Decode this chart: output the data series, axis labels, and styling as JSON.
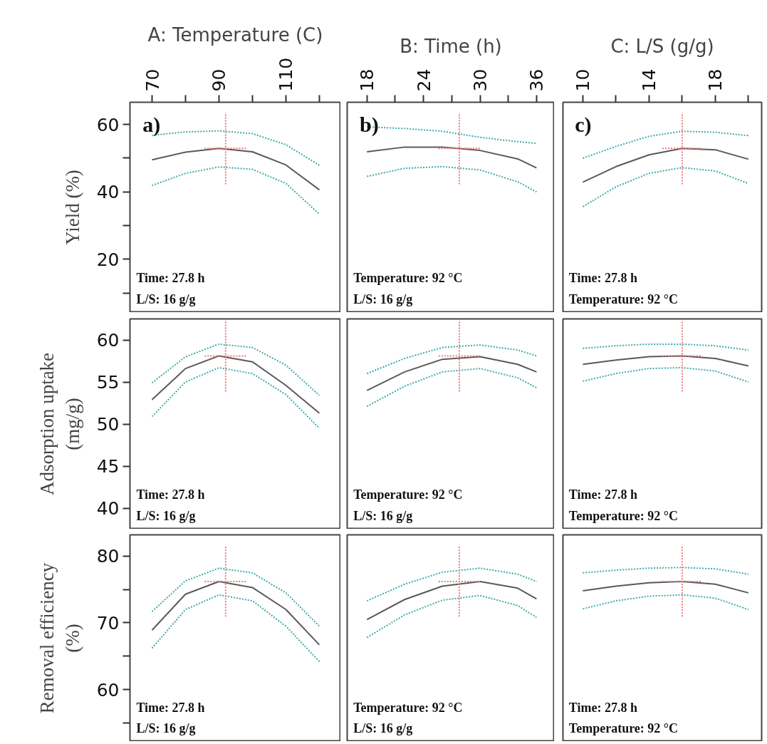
{
  "chart_data": [
    {
      "type": "line",
      "xlabel": "A: Temperature (C)",
      "ylabel": "Yield (%)",
      "x": [
        70,
        80,
        90,
        100,
        110,
        120
      ],
      "xlim": [
        63.4,
        126.4
      ],
      "xticks": [
        70,
        {
          "value": 80,
          "label": null
        },
        90,
        {
          "value": 100,
          "label": null
        },
        110,
        {
          "value": 120,
          "label": null
        }
      ],
      "ylim": [
        4.2,
        66.6
      ],
      "yticks": [
        {
          "value": 10,
          "label": null
        },
        20,
        {
          "value": 30,
          "label": null
        },
        40,
        {
          "value": 50,
          "label": null
        },
        60
      ],
      "series": [
        {
          "color": "#3fa9a9",
          "line_style": "dotted",
          "values": [
            56.8,
            57.8,
            58.1,
            57.3,
            54.0,
            47.9
          ]
        },
        {
          "color": "#5a5a5a",
          "values": [
            49.5,
            51.8,
            52.9,
            51.9,
            48.0,
            40.6
          ]
        },
        {
          "color": "#3fa9a9",
          "line_style": "dotted",
          "values": [
            41.9,
            45.5,
            47.4,
            46.7,
            42.5,
            33.4
          ]
        }
      ],
      "ref_lines": [
        {
          "axis": "x",
          "value": 92,
          "color": "#f07878",
          "line_style": "dotted"
        },
        {
          "axis": "y",
          "value": 52.9,
          "color": "#f07878",
          "line_style": "dotted"
        }
      ],
      "annotations": [
        "a)",
        "Time: 27.8 h",
        "L/S: 16 g/g"
      ]
    },
    {
      "type": "line",
      "xlabel": "B: Time (h)",
      "x": [
        18,
        22,
        26,
        30,
        34,
        36
      ],
      "xlim": [
        15.9,
        37.9
      ],
      "xticks": [
        18,
        {
          "value": 21,
          "label": null
        },
        24,
        {
          "value": 27,
          "label": null
        },
        30,
        {
          "value": 33,
          "label": null
        },
        36
      ],
      "ylim": [
        4.2,
        66.6
      ],
      "tick_labels": "x",
      "series": [
        {
          "color": "#3fa9a9",
          "line_style": "dotted",
          "values": [
            59.3,
            58.8,
            58.0,
            56.2,
            54.9,
            54.4
          ]
        },
        {
          "color": "#5a5a5a",
          "values": [
            51.9,
            53.3,
            53.3,
            52.3,
            49.8,
            47.1
          ]
        },
        {
          "color": "#3fa9a9",
          "line_style": "dotted",
          "values": [
            44.6,
            47.0,
            47.5,
            46.5,
            43.0,
            40.0
          ]
        }
      ],
      "ref_lines": [
        {
          "axis": "x",
          "value": 27.8,
          "color": "#f07878",
          "line_style": "dotted"
        },
        {
          "axis": "y",
          "value": 52.9,
          "color": "#f07878",
          "line_style": "dotted"
        }
      ],
      "annotations": [
        "b)",
        "Temperature: 92 °C",
        "L/S: 16 g/g"
      ]
    },
    {
      "type": "line",
      "xlabel": "C: L/S (g/g)",
      "x": [
        10,
        12,
        14,
        16,
        18,
        20
      ],
      "xlim": [
        8.8,
        20.8
      ],
      "xticks": [
        10,
        {
          "value": 12,
          "label": null
        },
        14,
        {
          "value": 16,
          "label": null
        },
        18,
        {
          "value": 20,
          "label": null
        }
      ],
      "ylim": [
        4.2,
        66.6
      ],
      "tick_labels": "x",
      "series": [
        {
          "color": "#3fa9a9",
          "line_style": "dotted",
          "values": [
            50.0,
            53.5,
            56.5,
            58.0,
            57.7,
            56.7
          ]
        },
        {
          "color": "#5a5a5a",
          "values": [
            42.9,
            47.5,
            51.0,
            52.9,
            52.5,
            49.7
          ]
        },
        {
          "color": "#3fa9a9",
          "line_style": "dotted",
          "values": [
            35.6,
            41.5,
            45.5,
            47.2,
            46.2,
            42.5
          ]
        }
      ],
      "ref_lines": [
        {
          "axis": "x",
          "value": 16,
          "color": "#f07878",
          "line_style": "dotted"
        },
        {
          "axis": "y",
          "value": 52.9,
          "color": "#f07878",
          "line_style": "dotted"
        }
      ],
      "annotations": [
        "c)",
        "Time: 27.8 h",
        "Temperature: 92 °C"
      ]
    },
    {
      "type": "line",
      "ylabel": "Adsorption uptake (mg/g)",
      "x": [
        70,
        80,
        90,
        100,
        110,
        120
      ],
      "xlim": [
        63.4,
        126.4
      ],
      "ylim": [
        37.5,
        62.5
      ],
      "yticks": [
        40,
        45,
        50,
        55,
        60
      ],
      "tick_labels": "y",
      "series": [
        {
          "color": "#3fa9a9",
          "line_style": "dotted",
          "values": [
            54.9,
            58.0,
            59.5,
            59.1,
            57.0,
            53.4
          ]
        },
        {
          "color": "#5a5a5a",
          "values": [
            52.9,
            56.6,
            58.1,
            57.4,
            54.6,
            51.3
          ]
        },
        {
          "color": "#3fa9a9",
          "line_style": "dotted",
          "values": [
            50.9,
            55.0,
            56.7,
            56.0,
            53.5,
            49.5
          ]
        }
      ],
      "ref_lines": [
        {
          "axis": "x",
          "value": 92,
          "color": "#f07878",
          "line_style": "dotted"
        },
        {
          "axis": "y",
          "value": 58.1,
          "color": "#f07878",
          "line_style": "dotted"
        }
      ],
      "annotations": [
        "Time: 27.8 h",
        "L/S: 16 g/g"
      ]
    },
    {
      "type": "line",
      "x": [
        18,
        22,
        26,
        30,
        34,
        36
      ],
      "xlim": [
        15.9,
        37.9
      ],
      "ylim": [
        37.5,
        62.5
      ],
      "tick_labels": false,
      "series": [
        {
          "color": "#3fa9a9",
          "line_style": "dotted",
          "values": [
            56.0,
            57.8,
            59.1,
            59.4,
            58.8,
            58.1
          ]
        },
        {
          "color": "#5a5a5a",
          "values": [
            54.0,
            56.2,
            57.7,
            58.0,
            57.1,
            56.2
          ]
        },
        {
          "color": "#3fa9a9",
          "line_style": "dotted",
          "values": [
            52.1,
            54.5,
            56.2,
            56.6,
            55.5,
            54.3
          ]
        }
      ],
      "ref_lines": [
        {
          "axis": "x",
          "value": 27.8,
          "color": "#f07878",
          "line_style": "dotted"
        },
        {
          "axis": "y",
          "value": 58.1,
          "color": "#f07878",
          "line_style": "dotted"
        }
      ],
      "annotations": [
        "Temperature: 92 °C",
        "L/S: 16 g/g"
      ]
    },
    {
      "type": "line",
      "x": [
        10,
        12,
        14,
        16,
        18,
        20
      ],
      "xlim": [
        8.8,
        20.8
      ],
      "ylim": [
        37.5,
        62.5
      ],
      "tick_labels": false,
      "series": [
        {
          "color": "#3fa9a9",
          "line_style": "dotted",
          "values": [
            59.0,
            59.3,
            59.5,
            59.5,
            59.3,
            58.8
          ]
        },
        {
          "color": "#5a5a5a",
          "values": [
            57.1,
            57.6,
            58.0,
            58.1,
            57.8,
            56.9
          ]
        },
        {
          "color": "#3fa9a9",
          "line_style": "dotted",
          "values": [
            55.1,
            56.0,
            56.6,
            56.7,
            56.3,
            55.0
          ]
        }
      ],
      "ref_lines": [
        {
          "axis": "x",
          "value": 16,
          "color": "#f07878",
          "line_style": "dotted"
        },
        {
          "axis": "y",
          "value": 58.1,
          "color": "#f07878",
          "line_style": "dotted"
        }
      ],
      "annotations": [
        "Time: 27.8 h",
        "Temperature: 92 °C"
      ]
    },
    {
      "type": "line",
      "ylabel": "Removal efficiency (%)",
      "x": [
        70,
        80,
        90,
        100,
        110,
        120
      ],
      "xlim": [
        63.4,
        126.4
      ],
      "ylim": [
        52.2,
        83.2
      ],
      "yticks": [
        {
          "value": 55,
          "label": null
        },
        60,
        {
          "value": 65,
          "label": null
        },
        70,
        {
          "value": 75,
          "label": null
        },
        80
      ],
      "tick_labels": "y",
      "series": [
        {
          "color": "#3fa9a9",
          "line_style": "dotted",
          "values": [
            71.7,
            76.3,
            78.2,
            77.5,
            74.5,
            69.5
          ]
        },
        {
          "color": "#5a5a5a",
          "values": [
            68.9,
            74.3,
            76.2,
            75.3,
            72.0,
            66.7
          ]
        },
        {
          "color": "#3fa9a9",
          "line_style": "dotted",
          "values": [
            66.2,
            72.0,
            74.2,
            73.3,
            69.5,
            64.2
          ]
        }
      ],
      "ref_lines": [
        {
          "axis": "x",
          "value": 92,
          "color": "#f07878",
          "line_style": "dotted"
        },
        {
          "axis": "y",
          "value": 76.2,
          "color": "#f07878",
          "line_style": "dotted"
        }
      ],
      "annotations": [
        "Time: 27.8 h",
        "L/S: 16 g/g"
      ]
    },
    {
      "type": "line",
      "x": [
        18,
        22,
        26,
        30,
        34,
        36
      ],
      "xlim": [
        15.9,
        37.9
      ],
      "ylim": [
        52.2,
        83.2
      ],
      "tick_labels": false,
      "series": [
        {
          "color": "#3fa9a9",
          "line_style": "dotted",
          "values": [
            73.3,
            75.8,
            77.6,
            78.2,
            77.3,
            76.2
          ]
        },
        {
          "color": "#5a5a5a",
          "values": [
            70.5,
            73.5,
            75.5,
            76.2,
            75.2,
            73.6
          ]
        },
        {
          "color": "#3fa9a9",
          "line_style": "dotted",
          "values": [
            67.8,
            71.2,
            73.4,
            74.1,
            72.6,
            70.8
          ]
        }
      ],
      "ref_lines": [
        {
          "axis": "x",
          "value": 27.8,
          "color": "#f07878",
          "line_style": "dotted"
        },
        {
          "axis": "y",
          "value": 76.2,
          "color": "#f07878",
          "line_style": "dotted"
        }
      ],
      "annotations": [
        "Temperature: 92 °C",
        "L/S: 16 g/g"
      ]
    },
    {
      "type": "line",
      "x": [
        10,
        12,
        14,
        16,
        18,
        20
      ],
      "xlim": [
        8.8,
        20.8
      ],
      "ylim": [
        52.2,
        83.2
      ],
      "tick_labels": false,
      "series": [
        {
          "color": "#3fa9a9",
          "line_style": "dotted",
          "values": [
            77.5,
            77.9,
            78.2,
            78.3,
            78.1,
            77.3
          ]
        },
        {
          "color": "#5a5a5a",
          "values": [
            74.8,
            75.5,
            76.0,
            76.2,
            75.8,
            74.5
          ]
        },
        {
          "color": "#3fa9a9",
          "line_style": "dotted",
          "values": [
            72.1,
            73.3,
            74.0,
            74.2,
            73.7,
            72.0
          ]
        }
      ],
      "ref_lines": [
        {
          "axis": "x",
          "value": 16,
          "color": "#f07878",
          "line_style": "dotted"
        },
        {
          "axis": "y",
          "value": 76.2,
          "color": "#f07878",
          "line_style": "dotted"
        }
      ],
      "annotations": [
        "Time: 27.8 h",
        "Temperature: 92 °C"
      ]
    }
  ]
}
